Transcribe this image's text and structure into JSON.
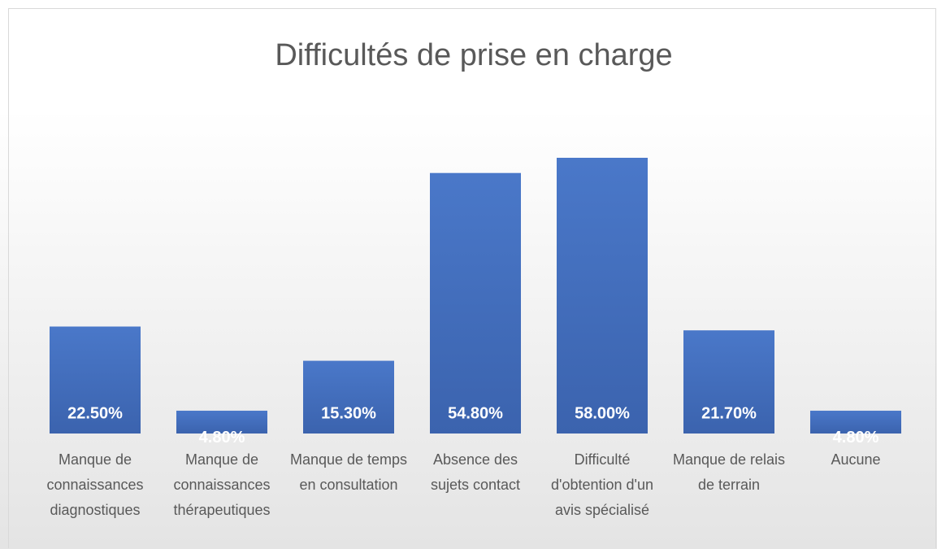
{
  "chart_data": {
    "type": "bar",
    "title": "Difficultés de prise en charge",
    "categories": [
      "Manque de connaissances diagnostiques",
      "Manque de connaissances thérapeutiques",
      "Manque de temps en consultation",
      "Absence des sujets contact",
      "Difficulté d'obtention d'un avis spécialisé",
      "Manque de relais de terrain",
      "Aucune"
    ],
    "values": [
      22.5,
      4.8,
      15.3,
      54.8,
      58.0,
      21.7,
      4.8
    ],
    "value_labels": [
      "22.50%",
      "4.80%",
      "15.30%",
      "54.80%",
      "58.00%",
      "21.70%",
      "4.80%"
    ],
    "color": "#4472c4"
  }
}
